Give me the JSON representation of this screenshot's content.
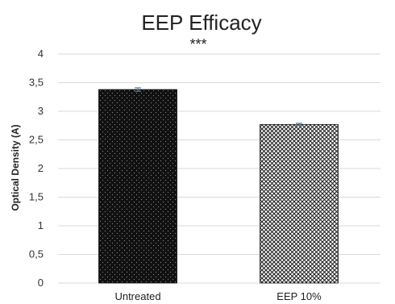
{
  "chart_data": {
    "type": "bar",
    "title": "EEP Efficacy",
    "annotation": "***",
    "xlabel": "",
    "ylabel": "Optical Density (A)",
    "ylim": [
      0,
      4
    ],
    "y_ticks": [
      "0",
      "0,5",
      "1",
      "1,5",
      "2",
      "2,5",
      "3",
      "3,5",
      "4"
    ],
    "y_tick_values": [
      0,
      0.5,
      1,
      1.5,
      2,
      2.5,
      3,
      3.5,
      4
    ],
    "categories": [
      "Untreated",
      "EEP 10%"
    ],
    "values": [
      3.38,
      2.77
    ],
    "errors": [
      0.03,
      0.02
    ],
    "grid": true,
    "legend": "none",
    "bar_patterns": [
      "dots-on-black",
      "crosshatch-on-white"
    ],
    "colors": {
      "bar_dark": "#111111",
      "bar_light_fill": "#ffffff",
      "bar_hatch": "#222222",
      "grid": "#d9d9d9",
      "error_bar": "#5b7fa6"
    }
  }
}
